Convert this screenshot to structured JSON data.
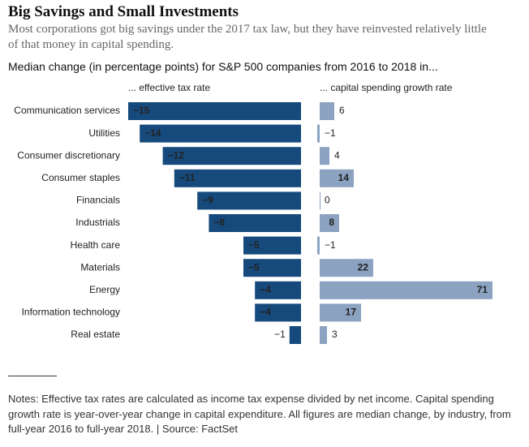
{
  "title": "Big Savings and Small Investments",
  "subtitle": "Most corporations got big savings under the 2017 tax law, but they have reinvested relatively little of that money in capital spending.",
  "header": "Median change (in percentage points) for S&P 500 companies from 2016 to 2018 in...",
  "notes": "Notes: Effective tax rates are calculated as income tax expense divided by net income. Capital spending growth rate is year-over-year change in capital expenditure. All figures are median change, by industry, from full-year 2016 to full-year 2018. | Source: FactSet",
  "chart_data": [
    {
      "type": "bar",
      "orientation": "horizontal",
      "subtitle": "... effective tax rate",
      "categories": [
        "Communication services",
        "Utilities",
        "Consumer discretionary",
        "Consumer staples",
        "Financials",
        "Industrials",
        "Health care",
        "Materials",
        "Energy",
        "Information technology",
        "Real estate"
      ],
      "values": [
        -15,
        -14,
        -12,
        -11,
        -9,
        -8,
        -5,
        -5,
        -4,
        -4,
        -1
      ],
      "value_labels": [
        "−15",
        "−14",
        "−12",
        "−11",
        "−9",
        "−8",
        "−5",
        "−5",
        "−4",
        "−4",
        "−1"
      ],
      "color": "#174a7c",
      "xlim": [
        -15,
        0
      ]
    },
    {
      "type": "bar",
      "orientation": "horizontal",
      "subtitle": "... capital spending growth rate",
      "values": [
        6,
        -1,
        4,
        14,
        0,
        8,
        -1,
        22,
        71,
        17,
        3
      ],
      "value_labels": [
        "6",
        "−1",
        "4",
        "14",
        "0",
        "8",
        "−1",
        "22",
        "71",
        "17",
        "3"
      ],
      "color": "#8ba3c1",
      "xlim": [
        0,
        71
      ]
    }
  ]
}
